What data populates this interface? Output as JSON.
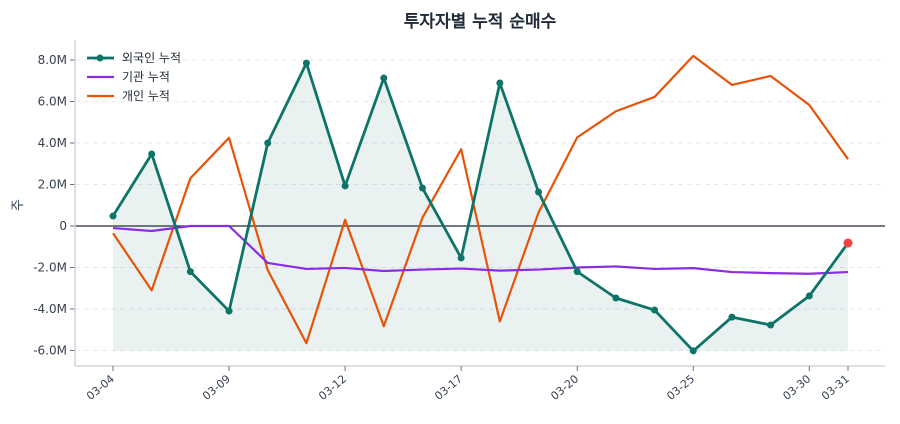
{
  "chart_data": {
    "type": "line",
    "title": "투자자별 누적 순매수",
    "xlabel": "",
    "ylabel": "주",
    "ylim": [
      -6.6,
      8.9
    ],
    "yticks": [
      -6,
      -4,
      -2,
      0,
      2,
      4,
      6,
      8
    ],
    "ytick_labels": [
      "-6.0M",
      "-4.0M",
      "-2.0M",
      "0",
      "2.0M",
      "4.0M",
      "6.0M",
      "8.0M"
    ],
    "y_unit": "M",
    "grid": "horizontal dashed",
    "legend_position": "top-left",
    "x": [
      "03-04",
      "03-05",
      "03-06",
      "03-09",
      "03-10",
      "03-11",
      "03-12",
      "03-13",
      "03-16",
      "03-17",
      "03-18",
      "03-19",
      "03-20",
      "03-23",
      "03-24",
      "03-25",
      "03-26",
      "03-27",
      "03-30",
      "03-31"
    ],
    "xtick_labels": [
      "03-04",
      "03-09",
      "03-12",
      "03-17",
      "03-20",
      "03-25",
      "03-30",
      "03-31"
    ],
    "series": [
      {
        "name": "외국인 누적",
        "color": "#0f7468",
        "markers": true,
        "fill": true,
        "last_marker_color": "#ef4444",
        "values": [
          0.48,
          3.47,
          -2.2,
          -4.1,
          4.0,
          7.85,
          1.93,
          7.13,
          1.83,
          -1.54,
          6.89,
          1.64,
          -2.2,
          -3.47,
          -4.05,
          -6.02,
          -4.39,
          -4.77,
          -3.37,
          -0.82
        ]
      },
      {
        "name": "기관 누적",
        "color": "#8b2be2",
        "markers": false,
        "values": [
          -0.1,
          -0.24,
          0.0,
          0.0,
          -1.78,
          -2.07,
          -2.02,
          -2.17,
          -2.1,
          -2.05,
          -2.15,
          -2.1,
          -2.0,
          -1.95,
          -2.07,
          -2.03,
          -2.22,
          -2.27,
          -2.3,
          -2.22
        ]
      },
      {
        "name": "개인 누적",
        "color": "#e8530a",
        "markers": false,
        "values": [
          -0.35,
          -3.1,
          2.3,
          4.25,
          -2.13,
          -5.65,
          0.3,
          -4.83,
          0.4,
          3.7,
          -4.6,
          0.65,
          4.27,
          5.53,
          6.22,
          8.2,
          6.8,
          7.23,
          5.83,
          3.22
        ]
      }
    ]
  }
}
